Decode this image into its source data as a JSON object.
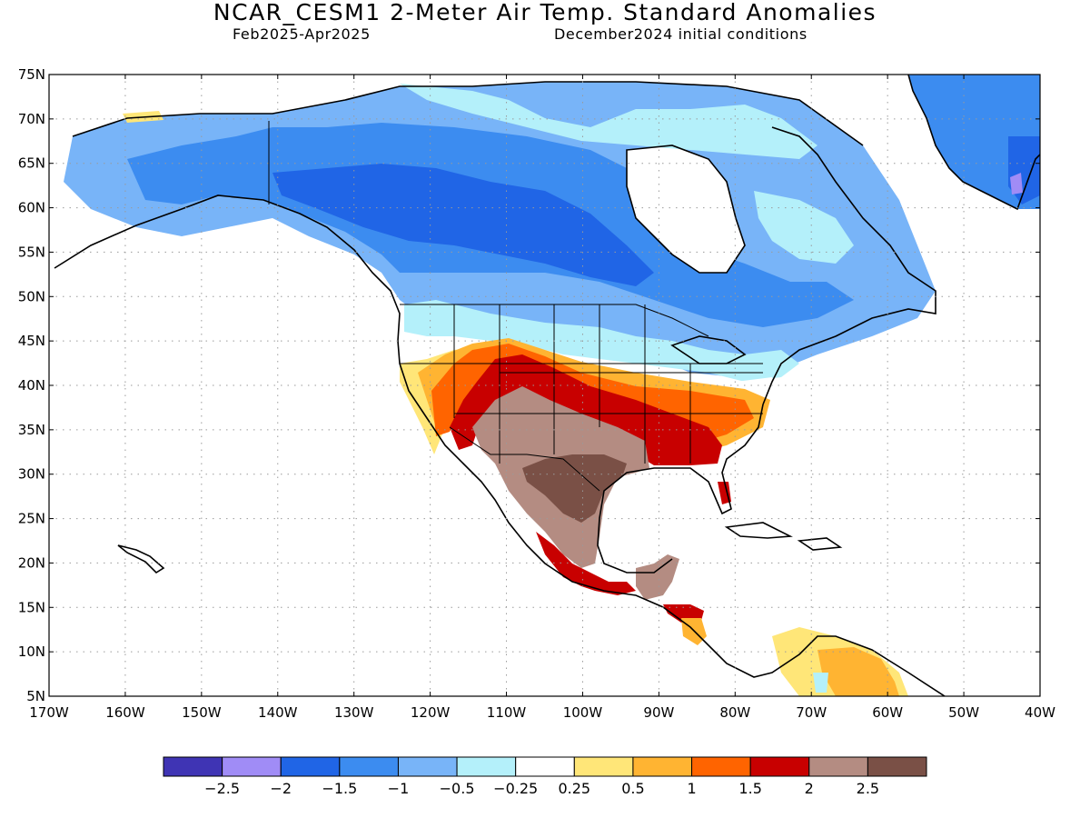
{
  "header": {
    "title": "NCAR_CESM1 2-Meter Air Temp. Standard Anomalies",
    "period": "Feb2025-Apr2025",
    "init": "December2024 initial conditions"
  },
  "map": {
    "lon_range": [
      -170,
      -40
    ],
    "lat_range": [
      5,
      75
    ],
    "lat_ticks": [
      "75N",
      "70N",
      "65N",
      "60N",
      "55N",
      "50N",
      "45N",
      "40N",
      "35N",
      "30N",
      "25N",
      "20N",
      "15N",
      "10N",
      "5N"
    ],
    "lon_ticks": [
      "170W",
      "160W",
      "150W",
      "140W",
      "130W",
      "120W",
      "110W",
      "100W",
      "90W",
      "80W",
      "70W",
      "60W",
      "50W",
      "40W"
    ]
  },
  "colorbar": {
    "colors": [
      "#3f34b4",
      "#a08cf6",
      "#2065e6",
      "#3c8cf0",
      "#78b4f8",
      "#b4f0fa",
      "#ffffff",
      "#ffe678",
      "#ffb432",
      "#ff6400",
      "#c80000",
      "#b48c82",
      "#7a5046"
    ],
    "labels": [
      "-2.5",
      "-2",
      "-1.5",
      "-1",
      "-0.5",
      "-0.25",
      "0.25",
      "0.5",
      "1",
      "1.5",
      "2",
      "2.5"
    ]
  }
}
